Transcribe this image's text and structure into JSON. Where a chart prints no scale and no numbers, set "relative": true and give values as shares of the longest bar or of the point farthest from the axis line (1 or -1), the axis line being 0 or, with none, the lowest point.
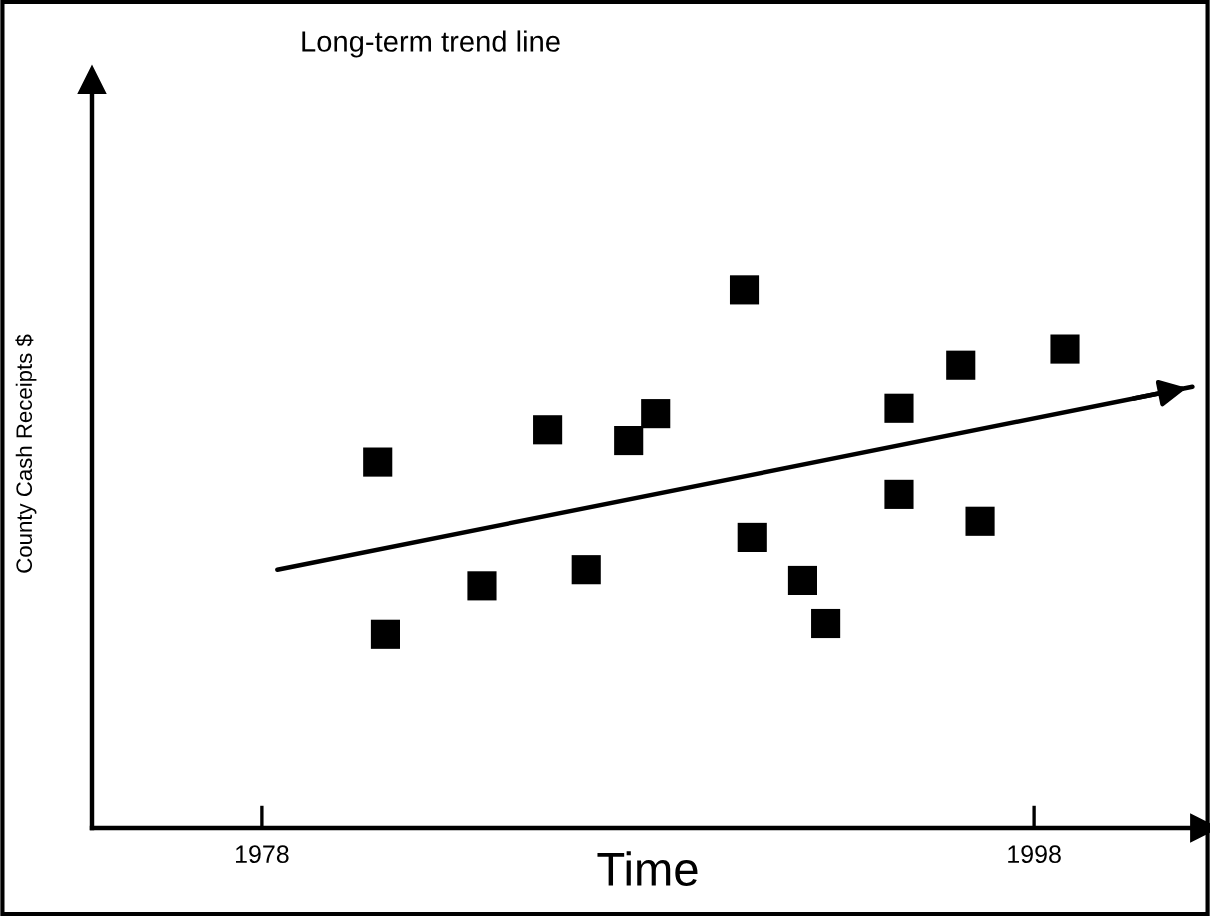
{
  "chart_data": {
    "type": "scatter",
    "title": "Long-term trend line",
    "xlabel": "Time",
    "ylabel": "County Cash Receipts $",
    "relative": true,
    "xlim": [
      1973.6,
      2002.4
    ],
    "xticks": [
      1978,
      1998
    ],
    "series": [
      {
        "marker": "square",
        "color": "#000000",
        "x": [
          1981.0,
          1981.2,
          1983.7,
          1985.4,
          1986.4,
          1987.5,
          1988.2,
          1990.5,
          1990.7,
          1992.0,
          1992.6,
          1994.5,
          1994.5,
          1996.1,
          1996.6,
          1998.8
        ],
        "values": [
          0.68,
          0.36,
          0.45,
          0.74,
          0.48,
          0.72,
          0.77,
          1.0,
          0.54,
          0.46,
          0.38,
          0.78,
          0.62,
          0.86,
          0.57,
          0.89
        ]
      },
      {
        "type": "line",
        "marker": "none",
        "color": "#000000",
        "x": [
          1978.4,
          2002.1
        ],
        "values": [
          0.48,
          0.82
        ]
      }
    ]
  }
}
